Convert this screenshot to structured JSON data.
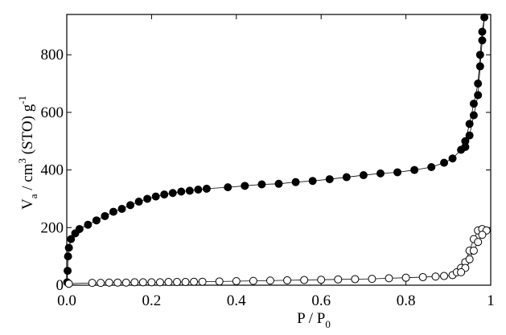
{
  "chart_data": {
    "type": "scatter-line",
    "xlabel": [
      "P / P",
      "0"
    ],
    "ylabel": [
      "V",
      "a",
      " / cm",
      "3",
      " (STO) g",
      "-1"
    ],
    "xlim": [
      0,
      1
    ],
    "ylim": [
      0,
      940
    ],
    "xticks": [
      {
        "value": 0,
        "label": "0.0"
      },
      {
        "value": 0.2,
        "label": "0.2"
      },
      {
        "value": 0.4,
        "label": "0.4"
      },
      {
        "value": 0.6,
        "label": "0.6"
      },
      {
        "value": 0.8,
        "label": "0.8"
      },
      1
    ],
    "yticks": [
      0,
      200,
      400,
      600,
      800
    ],
    "series": [
      {
        "color": "#000000",
        "marker": "filled",
        "x": [
          0.001,
          0.002,
          0.003,
          0.005,
          0.01,
          0.02,
          0.03,
          0.05,
          0.07,
          0.09,
          0.11,
          0.13,
          0.15,
          0.17,
          0.19,
          0.21,
          0.23,
          0.25,
          0.27,
          0.29,
          0.31,
          0.33,
          0.38,
          0.42,
          0.46,
          0.5,
          0.54,
          0.58,
          0.62,
          0.66,
          0.7,
          0.74,
          0.78,
          0.82,
          0.86,
          0.89,
          0.91,
          0.93,
          0.94,
          0.95,
          0.96,
          0.97,
          0.975,
          0.98,
          0.985,
          0.98,
          0.975,
          0.97,
          0.96,
          0.95,
          0.94
        ],
        "values": [
          10,
          50,
          100,
          130,
          160,
          180,
          195,
          210,
          225,
          240,
          255,
          265,
          278,
          290,
          300,
          308,
          315,
          320,
          325,
          328,
          332,
          335,
          340,
          345,
          350,
          352,
          358,
          362,
          368,
          375,
          382,
          388,
          392,
          400,
          410,
          425,
          440,
          470,
          500,
          560,
          630,
          700,
          800,
          880,
          930,
          850,
          760,
          660,
          590,
          520,
          480
        ]
      },
      {
        "color": "#ffffff",
        "marker": "open",
        "x": [
          0.005,
          0.06,
          0.08,
          0.1,
          0.12,
          0.14,
          0.16,
          0.18,
          0.2,
          0.22,
          0.24,
          0.26,
          0.28,
          0.3,
          0.32,
          0.36,
          0.4,
          0.44,
          0.48,
          0.52,
          0.56,
          0.6,
          0.64,
          0.68,
          0.72,
          0.76,
          0.8,
          0.84,
          0.87,
          0.89,
          0.91,
          0.92,
          0.93,
          0.94,
          0.95,
          0.96,
          0.97,
          0.98,
          0.99,
          0.98,
          0.97,
          0.96,
          0.95,
          0.94,
          0.93
        ],
        "values": [
          5,
          8,
          8,
          9,
          9,
          9,
          10,
          10,
          10,
          10,
          11,
          11,
          11,
          12,
          12,
          13,
          14,
          15,
          16,
          17,
          18,
          19,
          20,
          21,
          22,
          24,
          26,
          28,
          30,
          32,
          35,
          45,
          60,
          80,
          120,
          160,
          190,
          195,
          190,
          175,
          150,
          120,
          90,
          60,
          45
        ]
      }
    ]
  }
}
